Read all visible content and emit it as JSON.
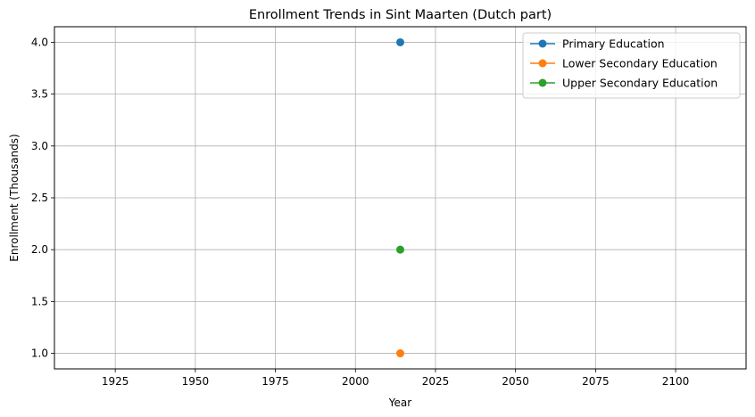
{
  "chart_data": {
    "type": "line",
    "title": "Enrollment Trends in Sint Maarten (Dutch part)",
    "xlabel": "Year",
    "ylabel": "Enrollment (Thousands)",
    "xlim": [
      1906,
      2122
    ],
    "ylim": [
      0.85,
      4.15
    ],
    "x_ticks": [
      1925,
      1950,
      1975,
      2000,
      2025,
      2050,
      2075,
      2100
    ],
    "y_ticks": [
      1.0,
      1.5,
      2.0,
      2.5,
      3.0,
      3.5,
      4.0
    ],
    "y_tick_labels": [
      "1.0",
      "1.5",
      "2.0",
      "2.5",
      "3.0",
      "3.5",
      "4.0"
    ],
    "grid": true,
    "legend_position": "top-right",
    "series": [
      {
        "name": "Primary Education",
        "color": "#1f77b4",
        "x": [
          2014
        ],
        "values": [
          4.0
        ]
      },
      {
        "name": "Lower Secondary Education",
        "color": "#ff7f0e",
        "x": [
          2014
        ],
        "values": [
          1.0
        ]
      },
      {
        "name": "Upper Secondary Education",
        "color": "#2ca02c",
        "x": [
          2014
        ],
        "values": [
          2.0
        ]
      }
    ]
  }
}
